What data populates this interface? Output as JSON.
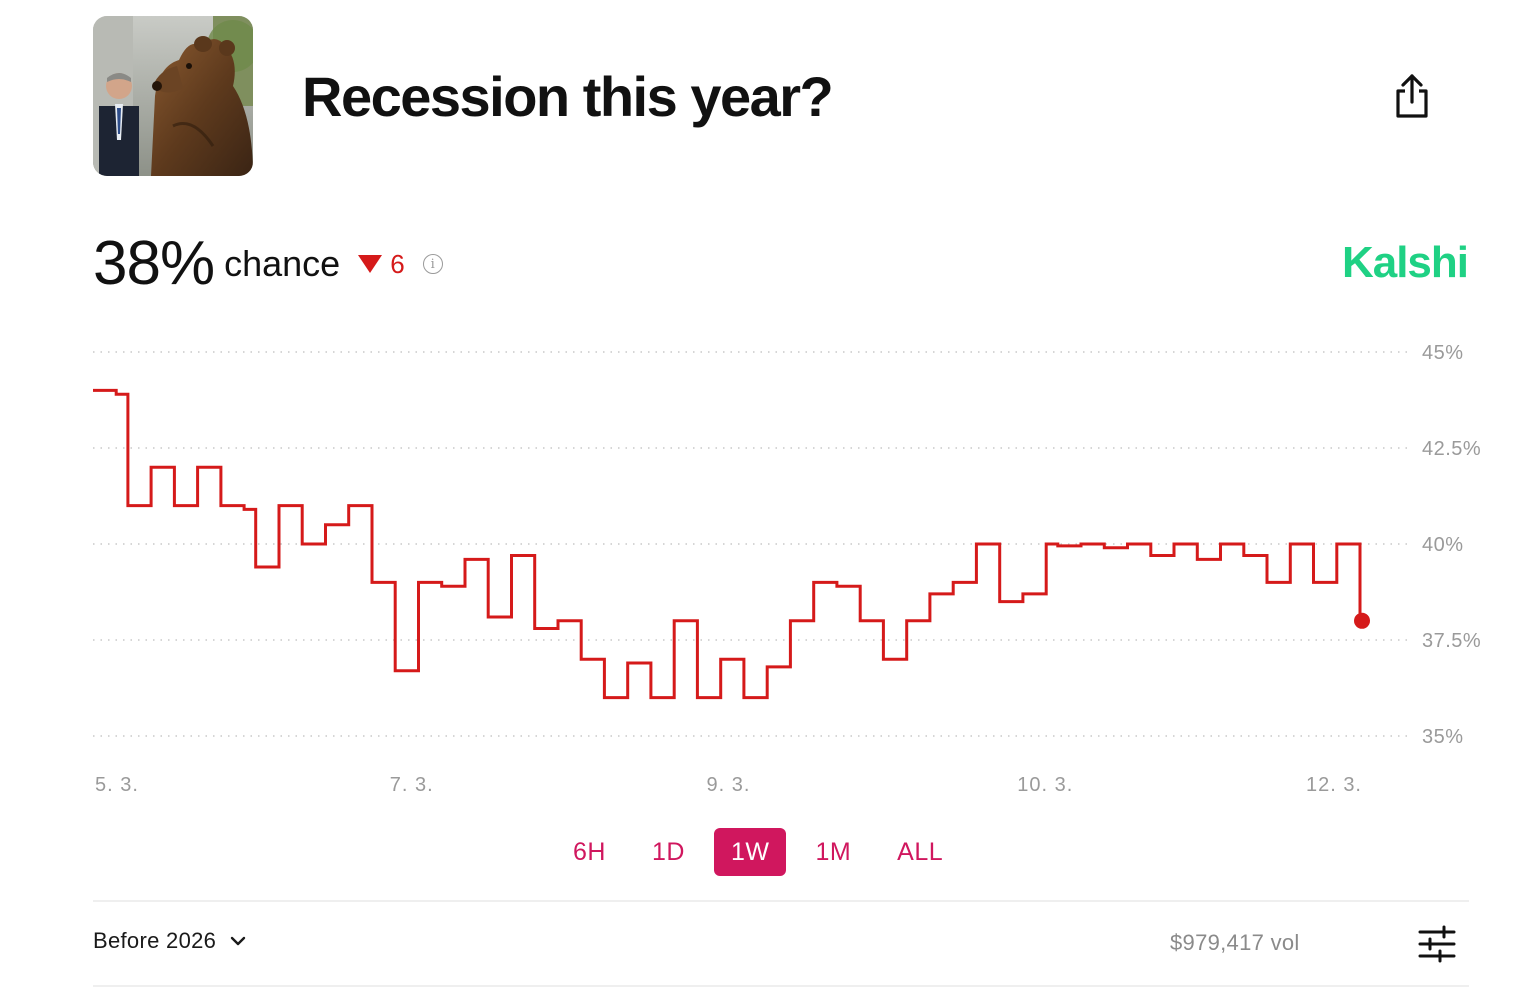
{
  "market": {
    "title": "Recession this year?",
    "thumbnail_icon": "bear-statue-photo"
  },
  "header": {
    "share_icon": "share-icon"
  },
  "odds": {
    "chance_value": "38%",
    "chance_label": "chance",
    "delta_icon": "down-triangle-icon",
    "delta_value": "6",
    "delta_color": "#d51a1a",
    "info_icon": "info-icon"
  },
  "brand": {
    "name": "Kalshi",
    "color": "#1fd184"
  },
  "chart_data": {
    "type": "line",
    "x_tick_labels": [
      "5. 3.",
      "7. 3.",
      "9. 3.",
      "10. 3.",
      "12. 3."
    ],
    "y_tick_labels": [
      "45%",
      "42.5%",
      "40%",
      "37.5%",
      "35%"
    ],
    "ylim": [
      35,
      45
    ],
    "grid": true,
    "line_color": "#d51a1a",
    "series": [
      {
        "values": [
          44,
          44,
          43.9,
          41,
          41,
          42,
          42,
          41,
          41,
          42,
          42,
          41,
          41,
          40.9,
          39.4,
          39.4,
          41,
          41,
          40,
          40,
          40.5,
          40.5,
          41,
          41,
          39,
          39,
          36.7,
          36.7,
          39,
          39,
          38.9,
          38.9,
          39.6,
          39.6,
          38.1,
          38.1,
          39.7,
          39.7,
          37.8,
          37.8,
          38,
          38,
          37,
          37,
          36,
          36,
          36.9,
          36.9,
          36,
          36,
          38,
          38,
          36,
          36,
          37,
          37,
          36,
          36,
          36.8,
          36.8,
          38,
          38,
          39,
          39,
          38.9,
          38.9,
          38,
          38,
          37,
          37,
          38,
          38,
          38.7,
          38.7,
          39,
          39,
          40,
          40,
          38.5,
          38.5,
          38.7,
          38.7,
          40,
          39.95,
          39.95,
          40,
          40,
          39.9,
          39.9,
          40,
          40,
          39.7,
          39.7,
          40,
          40,
          39.6,
          39.6,
          40,
          40,
          39.7,
          39.7,
          39,
          39,
          40,
          40,
          39,
          39,
          40,
          40,
          38
        ]
      }
    ],
    "current_value": 38
  },
  "range_tabs": [
    {
      "label": "6H",
      "active": false
    },
    {
      "label": "1D",
      "active": false
    },
    {
      "label": "1W",
      "active": true
    },
    {
      "label": "1M",
      "active": false
    },
    {
      "label": "ALL",
      "active": false
    }
  ],
  "footer": {
    "outcome_selector": "Before 2026",
    "outcome_chevron_icon": "chevron-down-icon",
    "volume": "$979,417 vol",
    "settings_icon": "sliders-icon"
  }
}
